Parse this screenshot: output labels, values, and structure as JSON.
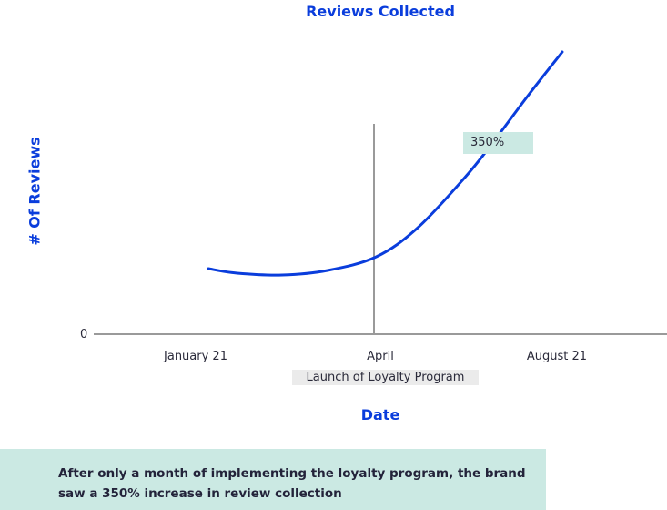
{
  "chart_data": {
    "type": "line",
    "title": "Reviews Collected",
    "xlabel": "Date",
    "ylabel": "# Of Reviews",
    "x_ticks": [
      "January 21",
      "April",
      "August 21"
    ],
    "y_ticks": [
      "0"
    ],
    "series": [
      {
        "color": "#0a3ddc",
        "x": [
          0.07,
          0.23,
          0.48,
          0.73,
          1.0,
          1.23,
          1.49,
          1.64,
          1.84,
          2.03
        ],
        "y": [
          72,
          67,
          65,
          70,
          85,
          117,
          172,
          209,
          262,
          310
        ]
      }
    ],
    "annotations": {
      "vertical_line_at": "April",
      "vertical_line_label": "Launch of Loyalty Program",
      "callout": "350%"
    },
    "grid": false
  },
  "note": "After only a month of implementing the loyalty program, the brand saw a 350% increase in review collection"
}
